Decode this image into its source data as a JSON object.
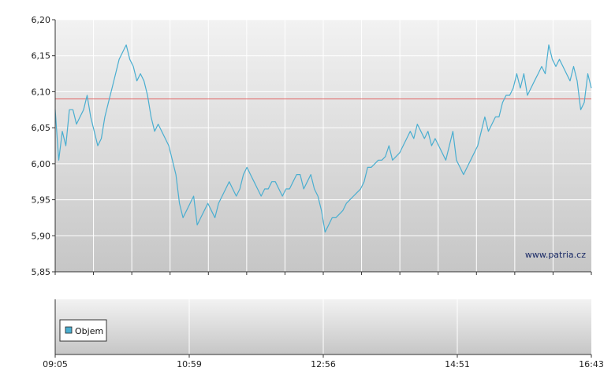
{
  "chart_data": [
    {
      "type": "line",
      "title": "",
      "xlabel": "",
      "ylabel": "",
      "ylim": [
        5.85,
        6.2
      ],
      "yticks": [
        "6,20",
        "6,15",
        "6,10",
        "6,05",
        "6,00",
        "5,95",
        "5,90",
        "5,85"
      ],
      "reference_line": {
        "value": 6.09,
        "color": "#e06666"
      },
      "grid": true,
      "colors": {
        "line": "#4aaed0",
        "grid": "#ffffff",
        "bg_top": "#f0f0f0",
        "bg_bottom": "#c8c8c8"
      },
      "watermark": "www.patria.cz",
      "series": [
        {
          "values": [
            6.075,
            6.005,
            6.045,
            6.025,
            6.075,
            6.075,
            6.055,
            6.065,
            6.075,
            6.095,
            6.065,
            6.045,
            6.025,
            6.035,
            6.065,
            6.085,
            6.105,
            6.125,
            6.145,
            6.155,
            6.165,
            6.145,
            6.135,
            6.115,
            6.125,
            6.115,
            6.095,
            6.065,
            6.045,
            6.055,
            6.045,
            6.035,
            6.025,
            6.005,
            5.985,
            5.945,
            5.925,
            5.935,
            5.945,
            5.955,
            5.915,
            5.925,
            5.935,
            5.945,
            5.935,
            5.925,
            5.945,
            5.955,
            5.965,
            5.975,
            5.965,
            5.955,
            5.965,
            5.985,
            5.995,
            5.985,
            5.975,
            5.965,
            5.955,
            5.965,
            5.965,
            5.975,
            5.975,
            5.965,
            5.955,
            5.965,
            5.965,
            5.975,
            5.985,
            5.985,
            5.965,
            5.975,
            5.985,
            5.965,
            5.955,
            5.935,
            5.905,
            5.915,
            5.925,
            5.925,
            5.93,
            5.935,
            5.945,
            5.95,
            5.955,
            5.96,
            5.965,
            5.975,
            5.995,
            5.995,
            6.0,
            6.005,
            6.005,
            6.01,
            6.025,
            6.005,
            6.01,
            6.015,
            6.025,
            6.035,
            6.045,
            6.035,
            6.055,
            6.045,
            6.035,
            6.045,
            6.025,
            6.035,
            6.025,
            6.015,
            6.005,
            6.025,
            6.045,
            6.005,
            5.995,
            5.985,
            5.995,
            6.005,
            6.015,
            6.025,
            6.045,
            6.065,
            6.045,
            6.055,
            6.065,
            6.065,
            6.085,
            6.095,
            6.095,
            6.105,
            6.125,
            6.105,
            6.125,
            6.095,
            6.105,
            6.115,
            6.125,
            6.135,
            6.125,
            6.165,
            6.145,
            6.135,
            6.145,
            6.135,
            6.125,
            6.115,
            6.135,
            6.115,
            6.075,
            6.085,
            6.125,
            6.105
          ]
        }
      ]
    },
    {
      "type": "bar",
      "title": "",
      "xticks": [
        "09:05",
        "10:59",
        "12:56",
        "14:51",
        "16:43"
      ],
      "legend": {
        "label": "Objem",
        "color": "#4aaed0",
        "position": "left"
      },
      "series": [
        {
          "name": "Objem",
          "values": []
        }
      ]
    }
  ]
}
